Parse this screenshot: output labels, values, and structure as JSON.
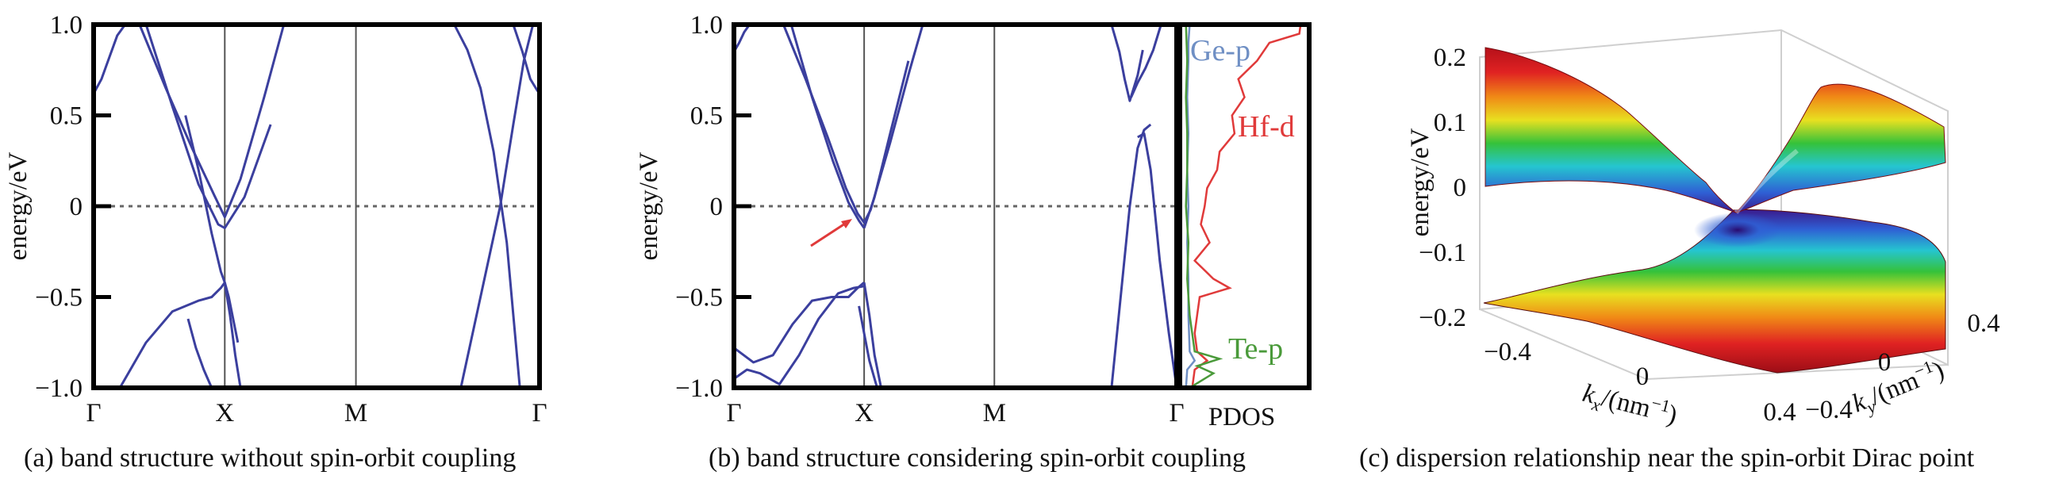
{
  "chart_data": [
    {
      "type": "line",
      "panel": "a",
      "caption": "(a) band structure without spin-orbit coupling",
      "ylabel": "energy/eV",
      "ylim": [
        -1.0,
        1.0
      ],
      "yticks": [
        "1.0",
        "0.5",
        "0",
        "−0.5",
        "−1.0"
      ],
      "ytick_values": [
        1.0,
        0.5,
        0,
        -0.5,
        -1.0
      ],
      "xticks": [
        "Γ",
        "X",
        "M",
        "Γ"
      ],
      "xtick_positions": [
        0,
        1,
        2,
        3.4
      ],
      "fermi_level": 0,
      "series_color": "#3b3f9e",
      "series": [
        {
          "x": [
            0,
            0.06,
            0.12,
            0.18,
            0.24
          ],
          "y": [
            0.62,
            0.7,
            0.82,
            0.94,
            1.0
          ]
        },
        {
          "x": [
            0.35,
            0.55,
            0.75,
            0.92,
            1.0,
            1.12,
            1.3,
            1.45
          ],
          "y": [
            1.0,
            0.65,
            0.32,
            0.06,
            -0.06,
            0.15,
            0.6,
            1.0
          ]
        },
        {
          "x": [
            0.4,
            0.6,
            0.8,
            0.95,
            1.0,
            1.15,
            1.35
          ],
          "y": [
            1.0,
            0.55,
            0.12,
            -0.1,
            -0.12,
            0.05,
            0.45
          ]
        },
        {
          "x": [
            0.7,
            0.8,
            0.9,
            0.97,
            1.0,
            1.03,
            1.1
          ],
          "y": [
            0.5,
            0.2,
            -0.15,
            -0.36,
            -0.42,
            -0.5,
            -0.75
          ]
        },
        {
          "x": [
            0.2,
            0.4,
            0.6,
            0.8,
            0.9,
            0.97,
            1.0
          ],
          "y": [
            -1.0,
            -0.75,
            -0.58,
            -0.52,
            -0.5,
            -0.45,
            -0.42
          ]
        },
        {
          "x": [
            1.0,
            1.04,
            1.08,
            1.12
          ],
          "y": [
            -0.42,
            -0.6,
            -0.82,
            -1.0
          ]
        },
        {
          "x": [
            0.72,
            0.78,
            0.84,
            0.9
          ],
          "y": [
            -0.62,
            -0.78,
            -0.9,
            -1.0
          ]
        },
        {
          "x": [
            2.75,
            2.85,
            2.95,
            3.05,
            3.15,
            3.25
          ],
          "y": [
            1.0,
            0.86,
            0.65,
            0.3,
            -0.2,
            -1.0
          ]
        },
        {
          "x": [
            2.8,
            2.95,
            3.1,
            3.2,
            3.28,
            3.35
          ],
          "y": [
            -1.0,
            -0.5,
            0.0,
            0.45,
            0.8,
            1.0
          ]
        },
        {
          "x": [
            3.2,
            3.27,
            3.33,
            3.38,
            3.4
          ],
          "y": [
            1.0,
            0.85,
            0.7,
            0.64,
            0.62
          ]
        }
      ]
    },
    {
      "type": "line",
      "panel": "b",
      "caption": "(b) band structure considering spin-orbit coupling",
      "ylabel": "energy/eV",
      "ylim": [
        -1.0,
        1.0
      ],
      "yticks": [
        "1.0",
        "0.5",
        "0",
        "−0.5",
        "−1.0"
      ],
      "ytick_values": [
        1.0,
        0.5,
        0,
        -0.5,
        -1.0
      ],
      "xticks": [
        "Γ",
        "X",
        "M",
        "Γ"
      ],
      "xtick_positions": [
        0,
        1,
        2,
        3.4
      ],
      "fermi_level": 0,
      "series_color": "#3b3f9e",
      "annotation": "arrow pointing to band crossing near X",
      "series": [
        {
          "x": [
            0.0,
            0.04,
            0.08,
            0.12,
            0.16
          ],
          "y": [
            0.85,
            0.9,
            0.96,
            1.0,
            1.0
          ]
        },
        {
          "x": [
            0.38,
            0.55,
            0.72,
            0.86,
            0.95,
            1.0,
            1.05,
            1.2,
            1.35,
            1.45
          ],
          "y": [
            1.0,
            0.7,
            0.38,
            0.1,
            -0.04,
            -0.09,
            -0.02,
            0.35,
            0.75,
            1.0
          ]
        },
        {
          "x": [
            0.44,
            0.6,
            0.76,
            0.88,
            0.96,
            1.0
          ],
          "y": [
            1.0,
            0.6,
            0.25,
            0.02,
            -0.08,
            -0.12
          ]
        },
        {
          "x": [
            1.0,
            1.08,
            1.2,
            1.34
          ],
          "y": [
            -0.12,
            0.05,
            0.4,
            0.8
          ]
        },
        {
          "x": [
            0.0,
            0.15,
            0.3,
            0.45,
            0.6,
            0.75,
            0.88,
            0.95,
            1.0
          ],
          "y": [
            -0.78,
            -0.86,
            -0.82,
            -0.65,
            -0.52,
            -0.5,
            -0.5,
            -0.45,
            -0.42
          ]
        },
        {
          "x": [
            1.0,
            1.04,
            1.08,
            1.13
          ],
          "y": [
            -0.42,
            -0.6,
            -0.82,
            -1.0
          ]
        },
        {
          "x": [
            0.0,
            0.1,
            0.2,
            0.35,
            0.5,
            0.65,
            0.8,
            0.92,
            1.0
          ],
          "y": [
            -0.95,
            -0.9,
            -0.92,
            -0.98,
            -0.82,
            -0.62,
            -0.48,
            -0.45,
            -0.44
          ]
        },
        {
          "x": [
            0.96,
            1.0,
            1.04,
            1.1
          ],
          "y": [
            -0.55,
            -0.7,
            -0.85,
            -1.0
          ]
        },
        {
          "x": [
            2.9,
            2.96,
            3.0,
            3.04,
            3.1,
            3.14
          ],
          "y": [
            1.0,
            0.85,
            0.7,
            0.58,
            0.72,
            0.86
          ]
        },
        {
          "x": [
            3.05,
            3.1,
            3.16,
            3.22,
            3.28
          ],
          "y": [
            0.6,
            0.68,
            0.76,
            0.86,
            1.0
          ]
        },
        {
          "x": [
            2.9,
            2.97,
            3.04,
            3.1,
            3.15,
            3.2
          ],
          "y": [
            -1.0,
            -0.5,
            0.0,
            0.32,
            0.42,
            0.45
          ]
        },
        {
          "x": [
            3.1,
            3.15,
            3.2,
            3.27,
            3.34,
            3.4
          ],
          "y": [
            0.38,
            0.4,
            0.2,
            -0.3,
            -0.7,
            -1.0
          ]
        }
      ],
      "pdos": {
        "label": "PDOS",
        "series": [
          {
            "name": "Ge-p",
            "color": "#6f8fc4",
            "e": [
              1.0,
              0.9,
              0.8,
              0.6,
              0.4,
              0.2,
              0.0,
              -0.2,
              -0.4,
              -0.6,
              -0.8,
              -0.85,
              -0.9,
              -1.0
            ],
            "v": [
              0.06,
              0.05,
              0.05,
              0.04,
              0.05,
              0.04,
              0.05,
              0.04,
              0.05,
              0.05,
              0.06,
              0.1,
              0.04,
              0.03
            ]
          },
          {
            "name": "Hf-d",
            "color": "#e03a3a",
            "e": [
              1.0,
              0.95,
              0.9,
              0.8,
              0.7,
              0.6,
              0.5,
              0.4,
              0.3,
              0.2,
              0.1,
              0.0,
              -0.1,
              -0.2,
              -0.3,
              -0.4,
              -0.45,
              -0.5,
              -0.6,
              -0.7,
              -0.8,
              -0.85,
              -0.9,
              -1.0
            ],
            "v": [
              0.95,
              0.94,
              0.7,
              0.6,
              0.45,
              0.5,
              0.4,
              0.42,
              0.3,
              0.28,
              0.2,
              0.18,
              0.15,
              0.22,
              0.1,
              0.25,
              0.38,
              0.14,
              0.12,
              0.1,
              0.12,
              0.2,
              0.1,
              0.08
            ]
          },
          {
            "name": "Te-p",
            "color": "#4a9a3a",
            "e": [
              1.0,
              0.8,
              0.6,
              0.4,
              0.2,
              0.0,
              -0.2,
              -0.4,
              -0.6,
              -0.8,
              -0.84,
              -0.88,
              -0.92,
              -1.0
            ],
            "v": [
              0.03,
              0.04,
              0.03,
              0.04,
              0.04,
              0.03,
              0.05,
              0.04,
              0.06,
              0.1,
              0.3,
              0.12,
              0.25,
              0.06
            ]
          }
        ]
      }
    },
    {
      "type": "surface3d",
      "panel": "c",
      "caption": "(c) dispersion relationship near the spin-orbit Dirac point",
      "zlabel": "energy/eV",
      "zticks": [
        "0.2",
        "0.1",
        "0",
        "−0.1",
        "−0.2"
      ],
      "zlim": [
        -0.2,
        0.2
      ],
      "kx_ticks": [
        "−0.4",
        "0",
        "0.4"
      ],
      "ky_ticks": [
        "−0.4",
        "0",
        "0.4"
      ],
      "kx_label": "k",
      "kx_sub": "x",
      "kx_unit": "/(nm",
      "ky_label": "k",
      "ky_sub": "y",
      "ky_unit": "/(nm",
      "unit_sup": "−1",
      "unit_close": ")",
      "colormap": "rainbow"
    }
  ]
}
